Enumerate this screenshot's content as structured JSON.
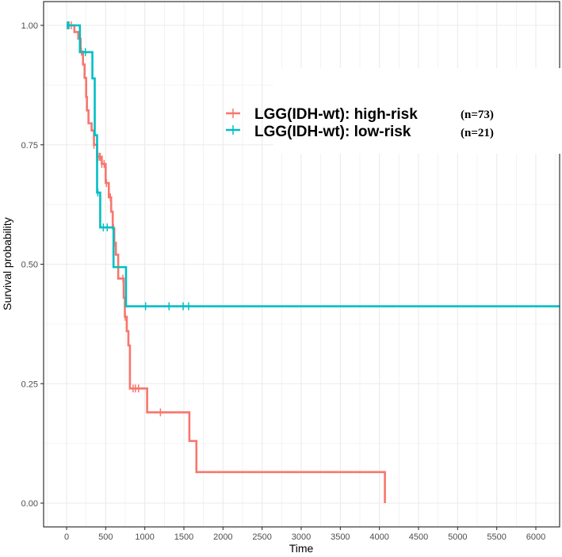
{
  "chart_data": {
    "type": "line",
    "subtype": "kaplan-meier-step",
    "title": "",
    "xlabel": "Time",
    "ylabel": "Survival probability",
    "xlim": [
      -300,
      6300
    ],
    "ylim": [
      -0.1,
      1.05
    ],
    "x_ticks": [
      0,
      500,
      1000,
      1500,
      2000,
      2500,
      3000,
      3500,
      4000,
      4500,
      5000,
      5500,
      6000
    ],
    "x_tick_labels": [
      "0",
      "500",
      "1000",
      "1500",
      "2000",
      "2500",
      "3000",
      "3500",
      "4000",
      "4500",
      "5000",
      "5500",
      "6000"
    ],
    "y_ticks": [
      0,
      0.25,
      0.5,
      0.75,
      1.0
    ],
    "y_tick_labels": [
      "0.00",
      "0.25",
      "0.50",
      "0.75",
      "1.00"
    ],
    "grid": true,
    "legend_position": "top-right (inside plot)",
    "series": [
      {
        "name": "LGG(IDH-wt): high-risk",
        "n_label": "(n=73)",
        "color": "#F8766D",
        "steps": [
          [
            0,
            1.0
          ],
          [
            100,
            0.986
          ],
          [
            150,
            0.972
          ],
          [
            180,
            0.945
          ],
          [
            210,
            0.918
          ],
          [
            230,
            0.89
          ],
          [
            250,
            0.85
          ],
          [
            260,
            0.822
          ],
          [
            280,
            0.795
          ],
          [
            320,
            0.78
          ],
          [
            350,
            0.75
          ],
          [
            390,
            0.725
          ],
          [
            450,
            0.71
          ],
          [
            500,
            0.67
          ],
          [
            540,
            0.64
          ],
          [
            570,
            0.61
          ],
          [
            590,
            0.575
          ],
          [
            610,
            0.545
          ],
          [
            630,
            0.52
          ],
          [
            660,
            0.47
          ],
          [
            730,
            0.43
          ],
          [
            745,
            0.39
          ],
          [
            770,
            0.36
          ],
          [
            790,
            0.33
          ],
          [
            810,
            0.24
          ],
          [
            1030,
            0.19
          ],
          [
            1570,
            0.13
          ],
          [
            1660,
            0.065
          ],
          [
            4070,
            0.0
          ]
        ],
        "end_time": 4070,
        "censor_times": [
          20,
          60,
          190,
          350,
          400,
          420,
          430,
          450,
          480,
          510,
          560,
          600,
          610,
          720,
          750,
          850,
          880,
          920,
          1200
        ]
      },
      {
        "name": "LGG(IDH-wt): low-risk",
        "n_label": "(n=21)",
        "color": "#00BFC4",
        "steps": [
          [
            0,
            1.0
          ],
          [
            170,
            0.944
          ],
          [
            330,
            0.889
          ],
          [
            360,
            0.77
          ],
          [
            390,
            0.65
          ],
          [
            430,
            0.577
          ],
          [
            600,
            0.494
          ],
          [
            760,
            0.412
          ]
        ],
        "end_time": 6300,
        "censor_times": [
          10,
          30,
          240,
          400,
          470,
          520,
          1010,
          1310,
          1490,
          1560
        ]
      }
    ]
  },
  "legend": {
    "items": [
      {
        "label": "LGG(IDH-wt): high-risk",
        "n": "(n=73)",
        "color": "#F8766D"
      },
      {
        "label": "LGG(IDH-wt): low-risk",
        "n": "(n=21)",
        "color": "#00BFC4"
      }
    ]
  },
  "axes": {
    "x_title": "Time",
    "y_title": "Survival probability"
  }
}
